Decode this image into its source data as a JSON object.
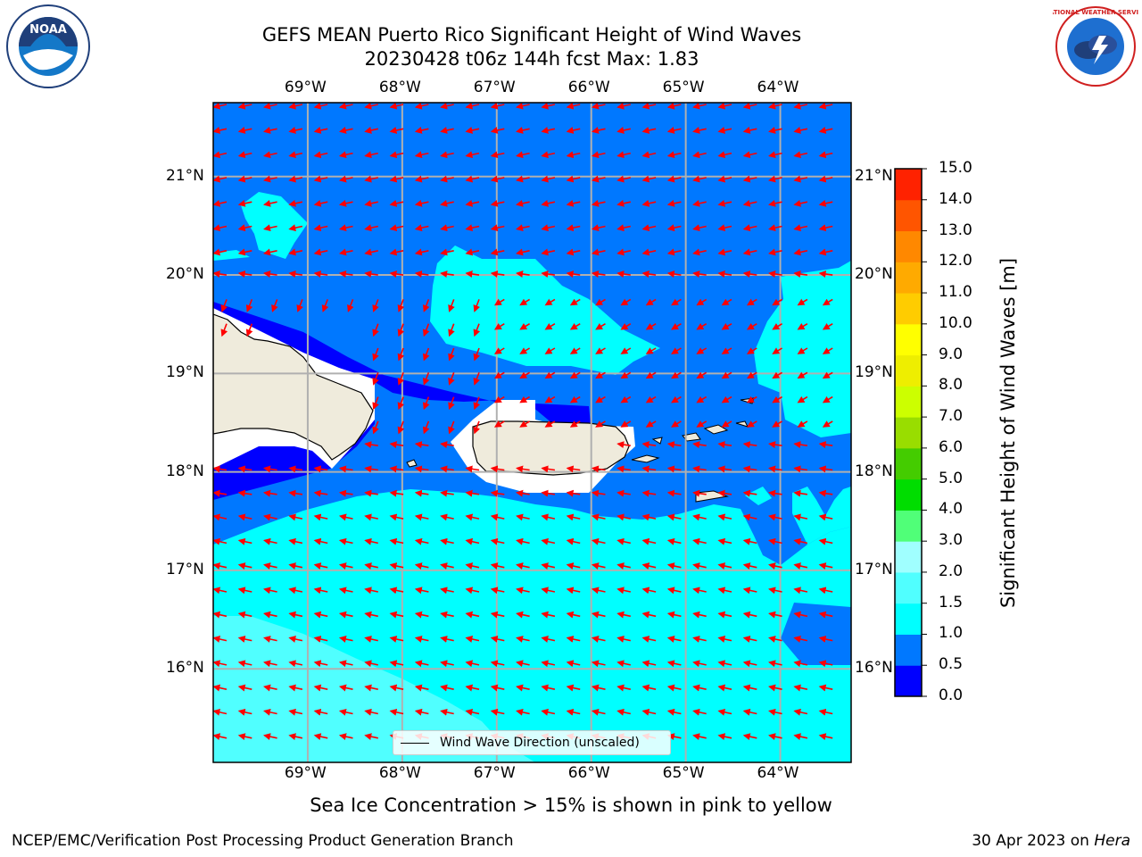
{
  "title": {
    "line1": "GEFS MEAN Puerto Rico Significant Height of Wind Waves",
    "line2": "20230428 t06z 144h fcst   Max: 1.83"
  },
  "logos": {
    "left": "NOAA",
    "right": "NATIONAL WEATHER SERVICE",
    "left_icon": "noaa-logo-icon",
    "right_icon": "nws-logo-icon"
  },
  "map": {
    "lon_labels": [
      "69°W",
      "68°W",
      "67°W",
      "66°W",
      "65°W",
      "64°W"
    ],
    "lat_labels": [
      "21°N",
      "20°N",
      "19°N",
      "18°N",
      "17°N",
      "16°N"
    ],
    "lon_values": [
      -69,
      -68,
      -67,
      -66,
      -65,
      -64
    ],
    "lat_values": [
      21,
      20,
      19,
      18,
      17,
      16
    ],
    "lon_range": [
      -70,
      -63.25
    ],
    "lat_range": [
      15.05,
      21.75
    ],
    "land_color": "#efebdc",
    "arrow_color": "#ff0000",
    "grid": true
  },
  "colorbar": {
    "title": "Significant Height of Wind Waves [m]",
    "tick_labels": [
      "15.0",
      "14.0",
      "13.0",
      "12.0",
      "11.0",
      "10.0",
      "9.0",
      "8.0",
      "7.0",
      "6.0",
      "5.0",
      "4.0",
      "3.0",
      "2.0",
      "1.5",
      "1.0",
      "0.5",
      "0.0"
    ],
    "levels": [
      0.0,
      0.5,
      1.0,
      1.5,
      2.0,
      3.0,
      4.0,
      5.0,
      6.0,
      7.0,
      8.0,
      9.0,
      10.0,
      11.0,
      12.0,
      13.0,
      14.0,
      15.0
    ],
    "colors": [
      "#0000ff",
      "#0078ff",
      "#00ffff",
      "#50ffff",
      "#a0ffff",
      "#50ff78",
      "#00dd00",
      "#44cc00",
      "#99dd00",
      "#ccff00",
      "#eeee00",
      "#ffff00",
      "#ffcc00",
      "#ffaa00",
      "#ff8800",
      "#ff5500",
      "#ff2200"
    ]
  },
  "legend": {
    "label": "Wind Wave Direction (unscaled)"
  },
  "note": "Sea Ice Concentration > 15% is shown in pink to yellow",
  "footer": {
    "left": "NCEP/EMC/Verification Post Processing Product Generation Branch",
    "right_prefix": "30 Apr 2023 on ",
    "right_machine": "Hera"
  }
}
